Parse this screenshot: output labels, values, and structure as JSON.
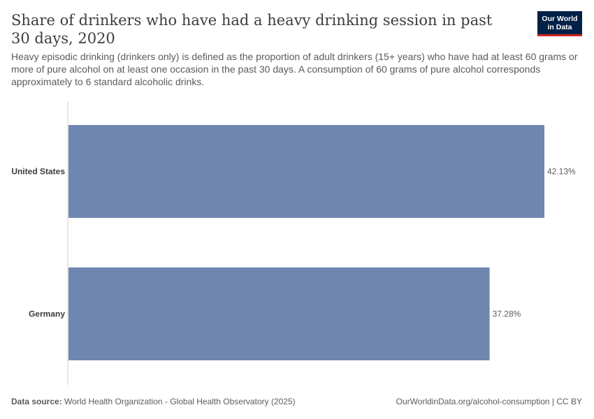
{
  "header": {
    "title": "Share of drinkers who have had a heavy drinking session in past 30 days, 2020",
    "subtitle": "Heavy episodic drinking (drinkers only) is defined as the proportion of adult drinkers (15+ years) who have had at least 60 grams or more of pure alcohol on at least one occasion in the past 30 days. A consumption of 60 grams of pure alcohol corresponds approximately to 6 standard alcoholic drinks.",
    "logo_line1": "Our World",
    "logo_line2": "in Data"
  },
  "footer": {
    "source_label": "Data source:",
    "source_text": " World Health Organization - Global Health Observatory (2025)",
    "url_license": "OurWorldinData.org/alcohol-consumption | CC BY"
  },
  "colors": {
    "bar": "#6f87b0",
    "axis": "#cccccc",
    "label": "#3d3d3d",
    "value_label": "#5b5b5b"
  },
  "chart_data": {
    "type": "bar",
    "orientation": "horizontal",
    "categories": [
      "United States",
      "Germany"
    ],
    "values": [
      42.13,
      37.28
    ],
    "value_labels": [
      "42.13%",
      "37.28%"
    ],
    "unit": "%",
    "xlim": [
      0,
      42.13
    ],
    "grid": false
  }
}
